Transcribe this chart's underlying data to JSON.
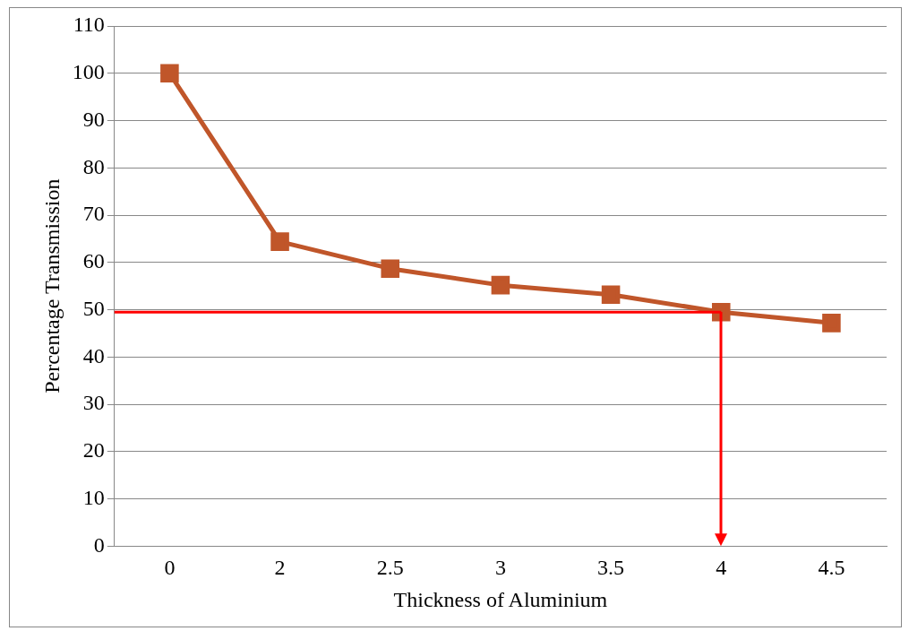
{
  "chart_data": {
    "type": "line",
    "xlabel": "Thickness of Aluminium",
    "ylabel": "Percentage Transmission",
    "categories": [
      "0",
      "2",
      "2.5",
      "3",
      "3.5",
      "4",
      "4.5"
    ],
    "series": [
      {
        "color": "#c0562a",
        "values": [
          100,
          64.4,
          58.7,
          55.2,
          53.2,
          49.5,
          47.2
        ]
      }
    ],
    "ylim": [
      0,
      110
    ],
    "yticks": [
      0,
      10,
      20,
      30,
      40,
      50,
      60,
      70,
      80,
      90,
      100,
      110
    ],
    "grid": "y",
    "marker": "square",
    "line_style": "solid",
    "ref_lines": [
      {
        "axis": "y",
        "value": 49.5,
        "color": "#ff0000"
      }
    ]
  }
}
